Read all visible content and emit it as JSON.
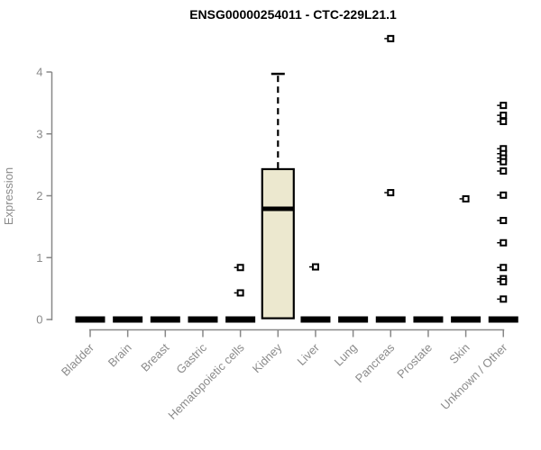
{
  "figure": {
    "background": "#ffffff"
  },
  "chart_data": {
    "type": "boxplot",
    "title": "ENSG00000254011 - CTC-229L21.1",
    "xlabel": "",
    "ylabel": "Expression",
    "ylim": [
      0,
      4
    ],
    "yticks": [
      0,
      1,
      2,
      3,
      4
    ],
    "grid": false,
    "legend": "none",
    "axis_color": "#888888",
    "label_color": "#8b8b8b",
    "box_fill_color": "#ece8cf",
    "box_stroke_color": "#000000",
    "outlier_marker": "open-square",
    "categories": [
      "Bladder",
      "Brain",
      "Breast",
      "Gastric",
      "Hematopoietic cells",
      "Kidney",
      "Liver",
      "Lung",
      "Pancreas",
      "Prostate",
      "Skin",
      "Unknown / Other"
    ],
    "boxes": [
      {
        "category": "Bladder",
        "q1": 0,
        "median": 0,
        "q3": 0,
        "whisker_low": 0,
        "whisker_high": 0,
        "outliers": []
      },
      {
        "category": "Brain",
        "q1": 0,
        "median": 0,
        "q3": 0,
        "whisker_low": 0,
        "whisker_high": 0,
        "outliers": []
      },
      {
        "category": "Breast",
        "q1": 0,
        "median": 0,
        "q3": 0,
        "whisker_low": 0,
        "whisker_high": 0,
        "outliers": []
      },
      {
        "category": "Gastric",
        "q1": 0,
        "median": 0,
        "q3": 0,
        "whisker_low": 0,
        "whisker_high": 0,
        "outliers": []
      },
      {
        "category": "Hematopoietic cells",
        "q1": 0,
        "median": 0,
        "q3": 0,
        "whisker_low": 0,
        "whisker_high": 0,
        "outliers": [
          0.84,
          0.43
        ]
      },
      {
        "category": "Kidney",
        "q1": 0.02,
        "median": 1.79,
        "q3": 2.43,
        "whisker_low": 0.02,
        "whisker_high": 3.97,
        "outliers": []
      },
      {
        "category": "Liver",
        "q1": 0,
        "median": 0,
        "q3": 0,
        "whisker_low": 0,
        "whisker_high": 0,
        "outliers": [
          0.85
        ]
      },
      {
        "category": "Lung",
        "q1": 0,
        "median": 0,
        "q3": 0,
        "whisker_low": 0,
        "whisker_high": 0,
        "outliers": []
      },
      {
        "category": "Pancreas",
        "q1": 0,
        "median": 0,
        "q3": 0,
        "whisker_low": 0,
        "whisker_high": 0,
        "outliers": [
          4.54,
          2.05
        ]
      },
      {
        "category": "Prostate",
        "q1": 0,
        "median": 0,
        "q3": 0,
        "whisker_low": 0,
        "whisker_high": 0,
        "outliers": []
      },
      {
        "category": "Skin",
        "q1": 0,
        "median": 0,
        "q3": 0,
        "whisker_low": 0,
        "whisker_high": 0,
        "outliers": [
          1.95
        ]
      },
      {
        "category": "Unknown / Other",
        "q1": 0,
        "median": 0,
        "q3": 0,
        "whisker_low": 0,
        "whisker_high": 0,
        "outliers": [
          3.46,
          3.3,
          3.2,
          2.76,
          2.68,
          2.61,
          2.55,
          2.4,
          2.01,
          1.6,
          1.24,
          0.84,
          0.66,
          0.61,
          0.33
        ]
      }
    ]
  }
}
